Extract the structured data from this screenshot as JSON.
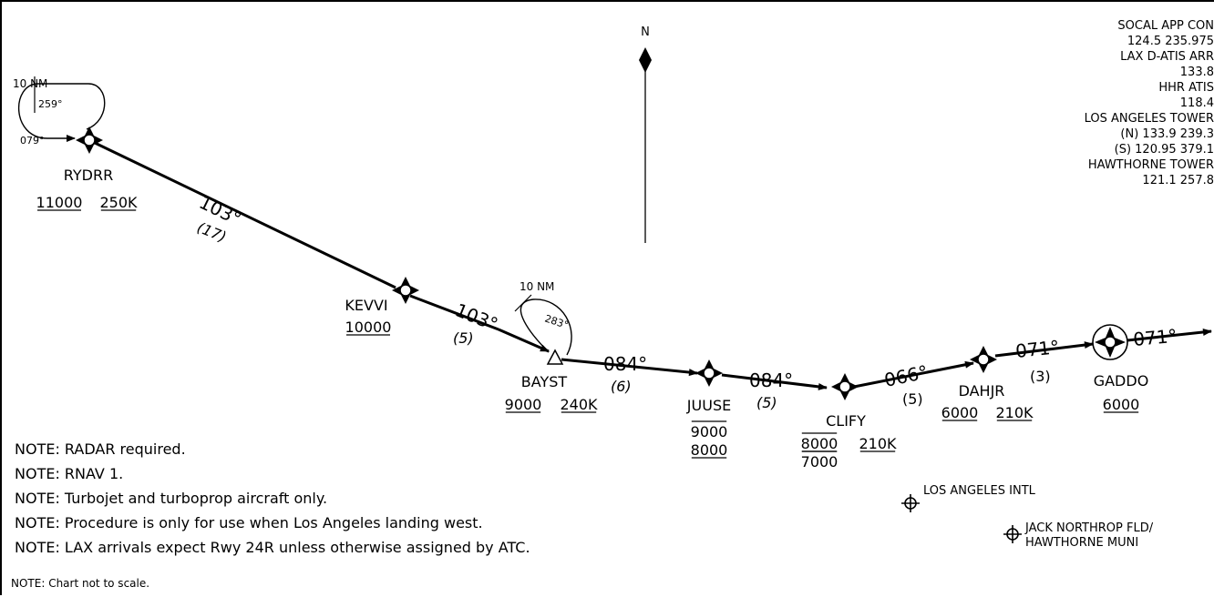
{
  "north_label": "N",
  "frequencies": [
    "SOCAL APP CON",
    "124.5  235.975",
    "LAX D-ATIS ARR",
    "133.8",
    "HHR ATIS",
    "118.4",
    "LOS ANGELES TOWER",
    "(N) 133.9  239.3",
    "(S) 120.95  379.1",
    "HAWTHORNE TOWER",
    "121.1  257.8"
  ],
  "fixes": {
    "RYDRR": {
      "name": "RYDRR",
      "alt": [
        "11000"
      ],
      "speed": "250K"
    },
    "KEVVI": {
      "name": "KEVVI",
      "alt": [
        "10000"
      ]
    },
    "BAYST": {
      "name": "BAYST",
      "alt": [
        "9000"
      ],
      "speed": "240K"
    },
    "JUUSE": {
      "name": "JUUSE",
      "alt": [
        "9000",
        "8000"
      ]
    },
    "CLIFY": {
      "name": "CLIFY",
      "alt": [
        "8000",
        "7000"
      ],
      "speed": "210K"
    },
    "DAHJR": {
      "name": "DAHJR",
      "alt": [
        "6000"
      ],
      "speed": "210K"
    },
    "GADDO": {
      "name": "GADDO",
      "alt": [
        "6000"
      ]
    }
  },
  "legs": [
    {
      "course": "103°",
      "distance": "(17)"
    },
    {
      "course": "103°",
      "distance": "(5)"
    },
    {
      "course": "084°",
      "distance": "(6)"
    },
    {
      "course": "084°",
      "distance": "(5)"
    },
    {
      "course": "066°",
      "distance": "(5)"
    },
    {
      "course": "071°",
      "distance": "(3)"
    },
    {
      "course": "071°",
      "distance": ""
    }
  ],
  "holds": [
    {
      "length": "10 NM",
      "inbound": "079°",
      "outbound": "259°"
    },
    {
      "length": "10 NM",
      "outbound": "283°"
    }
  ],
  "airports": [
    {
      "name": [
        "LOS ANGELES INTL"
      ]
    },
    {
      "name": [
        "JACK NORTHROP FLD/",
        "HAWTHORNE MUNI"
      ]
    }
  ],
  "notes": [
    "NOTE: RADAR required.",
    "NOTE: RNAV 1.",
    "NOTE: Turbojet and turboprop aircraft only.",
    "NOTE: Procedure is only for use when Los Angeles landing west.",
    "NOTE: LAX arrivals expect Rwy 24R unless otherwise assigned by ATC."
  ],
  "scale_note": "NOTE:  Chart not to scale."
}
